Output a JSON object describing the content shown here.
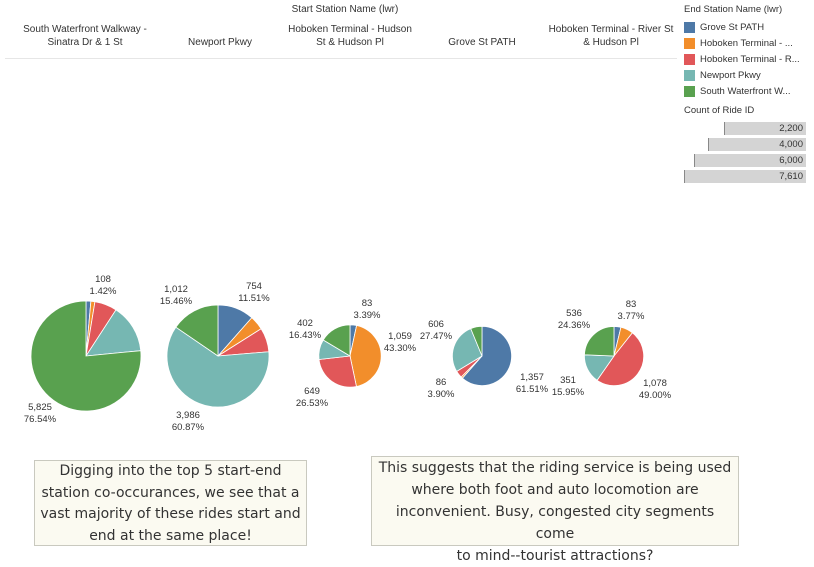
{
  "header": {
    "title": "Start Station Name (lwr)"
  },
  "columns": [
    {
      "line1": "South Waterfront Walkway -",
      "line2": "Sinatra Dr & 1 St"
    },
    {
      "line1": "Newport Pkwy",
      "line2": ""
    },
    {
      "line1": "Hoboken Terminal - Hudson",
      "line2": "St & Hudson Pl"
    },
    {
      "line1": "Grove St PATH",
      "line2": ""
    },
    {
      "line1": "Hoboken Terminal - River St",
      "line2": "& Hudson Pl"
    }
  ],
  "legend": {
    "title": "End Station Name (lwr)",
    "items": [
      {
        "label": "Grove St PATH",
        "color": "#4e79a7"
      },
      {
        "label": "Hoboken Terminal - ...",
        "color": "#f28e2b"
      },
      {
        "label": "Hoboken Terminal - R...",
        "color": "#e15759"
      },
      {
        "label": "Newport Pkwy",
        "color": "#76b7b2"
      },
      {
        "label": "South Waterfront W...",
        "color": "#59a14f"
      }
    ]
  },
  "size_legend": {
    "title": "Count of Ride ID",
    "items": [
      "2,200",
      "4,000",
      "6,000",
      "7,610"
    ],
    "values": [
      2200,
      4000,
      6000,
      7610
    ]
  },
  "chart_data": {
    "type": "pie",
    "series_names": [
      "Grove St PATH",
      "Hoboken Terminal - ...",
      "Hoboken Terminal - R...",
      "Newport Pkwy",
      "South Waterfront W..."
    ],
    "pies": [
      {
        "start_station": "South Waterfront Walkway - Sinatra Dr & 1 St",
        "total": 7610,
        "slices": [
          {
            "end": "Grove St PATH",
            "value": 108
          },
          {
            "end": "Hoboken Terminal - ...",
            "value": 90
          },
          {
            "end": "Hoboken Terminal - R...",
            "value": 500
          },
          {
            "end": "Newport Pkwy",
            "value": 1087
          },
          {
            "end": "South Waterfront W...",
            "value": 5825
          }
        ],
        "labels": [
          {
            "value": "108",
            "pct": "1.42%"
          },
          {
            "value": "5,825",
            "pct": "76.54%"
          }
        ]
      },
      {
        "start_station": "Newport Pkwy",
        "total": 6548,
        "slices": [
          {
            "end": "Grove St PATH",
            "value": 754
          },
          {
            "end": "Hoboken Terminal - ...",
            "value": 296
          },
          {
            "end": "Hoboken Terminal - R...",
            "value": 500
          },
          {
            "end": "Newport Pkwy",
            "value": 3986
          },
          {
            "end": "South Waterfront W...",
            "value": 1012
          }
        ],
        "labels": [
          {
            "value": "754",
            "pct": "11.51%"
          },
          {
            "value": "1,012",
            "pct": "15.46%"
          },
          {
            "value": "3,986",
            "pct": "60.87%"
          }
        ]
      },
      {
        "start_station": "Hoboken Terminal - Hudson St & Hudson Pl",
        "total": 2446,
        "slices": [
          {
            "end": "Grove St PATH",
            "value": 83
          },
          {
            "end": "Hoboken Terminal - ...",
            "value": 1059
          },
          {
            "end": "Hoboken Terminal - R...",
            "value": 649
          },
          {
            "end": "Newport Pkwy",
            "value": 253
          },
          {
            "end": "South Waterfront W...",
            "value": 402
          }
        ],
        "labels": [
          {
            "value": "83",
            "pct": "3.39%"
          },
          {
            "value": "1,059",
            "pct": "43.30%"
          },
          {
            "value": "649",
            "pct": "26.53%"
          },
          {
            "value": "402",
            "pct": "16.43%"
          }
        ]
      },
      {
        "start_station": "Grove St PATH",
        "total": 2206,
        "slices": [
          {
            "end": "Grove St PATH",
            "value": 1357
          },
          {
            "end": "Hoboken Terminal - ...",
            "value": 20
          },
          {
            "end": "Hoboken Terminal - R...",
            "value": 86
          },
          {
            "end": "Newport Pkwy",
            "value": 606
          },
          {
            "end": "South Waterfront W...",
            "value": 137
          }
        ],
        "labels": [
          {
            "value": "1,357",
            "pct": "61.51%"
          },
          {
            "value": "86",
            "pct": "3.90%"
          },
          {
            "value": "606",
            "pct": "27.47%"
          }
        ]
      },
      {
        "start_station": "Hoboken Terminal - River St & Hudson Pl",
        "total": 2200,
        "slices": [
          {
            "end": "Grove St PATH",
            "value": 83
          },
          {
            "end": "Hoboken Terminal - ...",
            "value": 152
          },
          {
            "end": "Hoboken Terminal - R...",
            "value": 1078
          },
          {
            "end": "Newport Pkwy",
            "value": 351
          },
          {
            "end": "South Waterfront W...",
            "value": 536
          }
        ],
        "labels": [
          {
            "value": "83",
            "pct": "3.77%"
          },
          {
            "value": "1,078",
            "pct": "49.00%"
          },
          {
            "value": "351",
            "pct": "15.95%"
          },
          {
            "value": "536",
            "pct": "24.36%"
          }
        ]
      }
    ]
  },
  "notes": [
    {
      "lines": [
        "Digging into the top 5 start-end",
        "station co-occurances, we see that a",
        "vast majority of these rides start and",
        "end at the same place!"
      ]
    },
    {
      "lines": [
        "This suggests that the riding service is being used",
        "where both foot and auto locomotion are",
        "inconvenient. Busy, congested city segments come",
        "to mind--tourist attractions?"
      ]
    }
  ]
}
